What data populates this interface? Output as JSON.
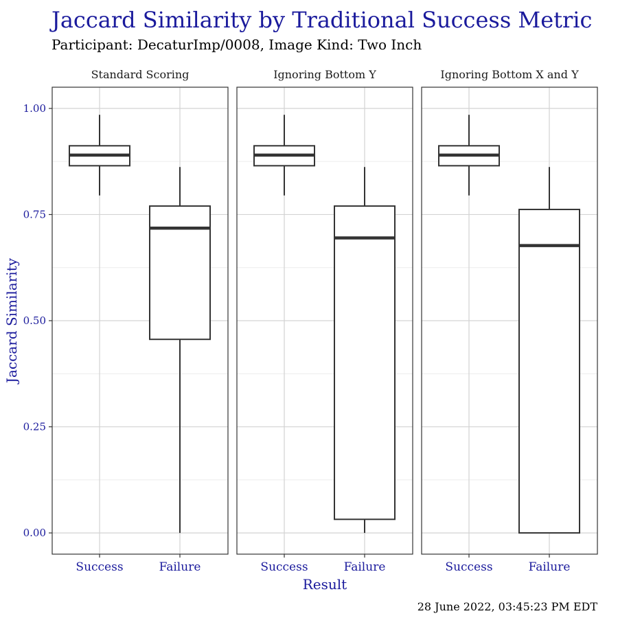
{
  "chart_data": {
    "type": "boxplot",
    "title": "Jaccard Similarity by Traditional Success Metric",
    "subtitle": "Participant: DecaturImp/0008, Image Kind: Two Inch",
    "xlabel": "Result",
    "ylabel": "Jaccard Similarity",
    "ylim": [
      -0.05,
      1.05
    ],
    "yticks": [
      0.0,
      0.25,
      0.5,
      0.75,
      1.0
    ],
    "ytick_labels": [
      "0.00",
      "0.25",
      "0.50",
      "0.75",
      "1.00"
    ],
    "categories": [
      "Success",
      "Failure"
    ],
    "grid": true,
    "facets": [
      {
        "label": "Standard Scoring",
        "boxes": [
          {
            "category": "Success",
            "min": 0.795,
            "q1": 0.865,
            "median": 0.89,
            "q3": 0.912,
            "max": 0.985
          },
          {
            "category": "Failure",
            "min": 0.0,
            "q1": 0.456,
            "median": 0.718,
            "q3": 0.77,
            "max": 0.862
          }
        ]
      },
      {
        "label": "Ignoring Bottom Y",
        "boxes": [
          {
            "category": "Success",
            "min": 0.795,
            "q1": 0.865,
            "median": 0.89,
            "q3": 0.912,
            "max": 0.985
          },
          {
            "category": "Failure",
            "min": 0.0,
            "q1": 0.032,
            "median": 0.695,
            "q3": 0.77,
            "max": 0.862
          }
        ]
      },
      {
        "label": "Ignoring Bottom X and Y",
        "boxes": [
          {
            "category": "Success",
            "min": 0.795,
            "q1": 0.865,
            "median": 0.89,
            "q3": 0.912,
            "max": 0.985
          },
          {
            "category": "Failure",
            "min": 0.0,
            "q1": 0.0,
            "median": 0.677,
            "q3": 0.762,
            "max": 0.862
          }
        ]
      }
    ]
  },
  "footer": {
    "timestamp": "28 June 2022, 03:45:23 PM EDT"
  }
}
